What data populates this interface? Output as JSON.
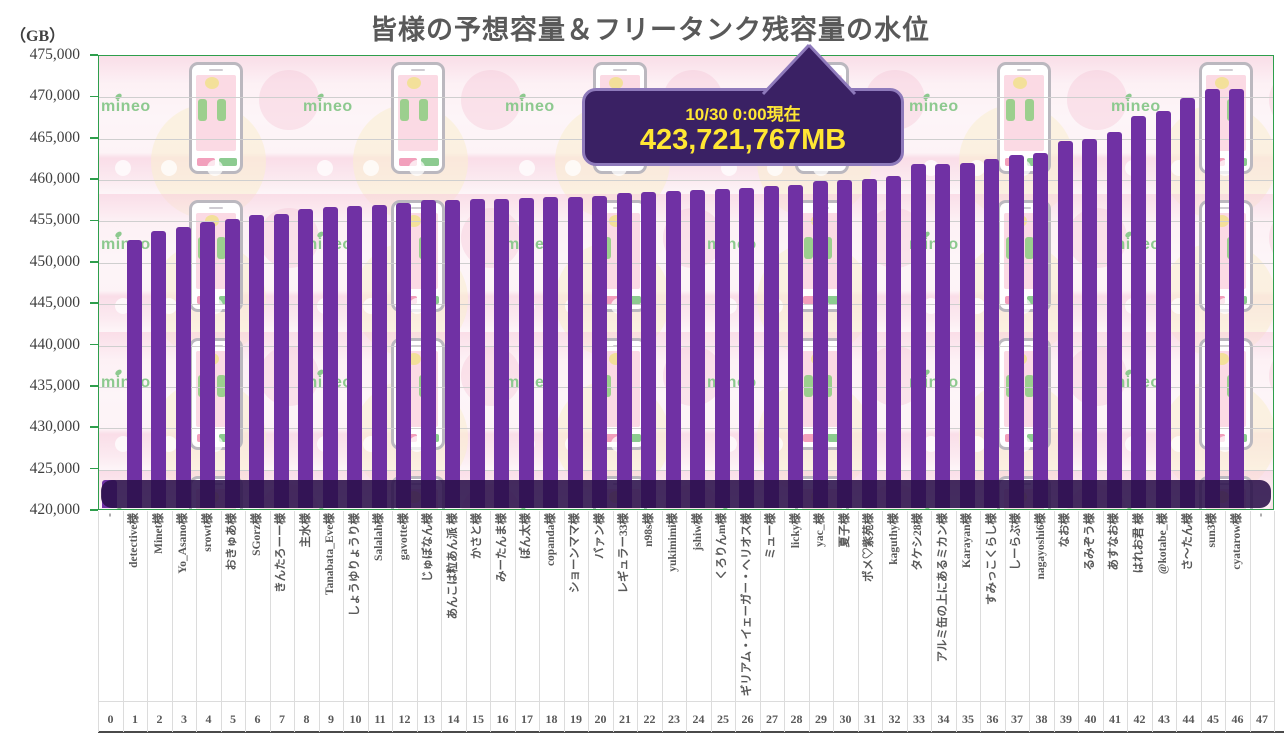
{
  "title": "皆様の予想容量＆フリータンク残容量の水位",
  "y_axis": {
    "unit": "（GB）",
    "tick_labels": [
      "475,000",
      "470,000",
      "465,000",
      "460,000",
      "455,000",
      "450,000",
      "445,000",
      "440,000",
      "435,000",
      "430,000",
      "425,000",
      "420,000"
    ]
  },
  "callout": {
    "line1": "10/30 0:00現在",
    "line2": "423,721,767MB"
  },
  "background": {
    "brand": "mineo"
  },
  "colors": {
    "bar": "#7031A4",
    "water_band": "#2A104A",
    "plot_border_green": "#2E9E4C",
    "callout_bg": "#3A2164",
    "callout_border": "#8E7ABB",
    "callout_text_yellow": "#FFE733",
    "brand_green": "#8DC98F",
    "title_gray": "#595959"
  },
  "chart_data": {
    "type": "bar",
    "title": "皆様の予想容量＆フリータンク残容量の水位",
    "xlabel": "",
    "ylabel": "（GB）",
    "ylim": [
      420000,
      475000
    ],
    "grid": true,
    "current_level_note": "10/30 0:00現在 423,721,767MB",
    "current_level_gb": 423722,
    "index_labels": [
      "0",
      "1",
      "2",
      "3",
      "4",
      "5",
      "6",
      "7",
      "8",
      "9",
      "10",
      "11",
      "12",
      "13",
      "14",
      "15",
      "16",
      "17",
      "18",
      "19",
      "20",
      "21",
      "22",
      "23",
      "24",
      "25",
      "26",
      "27",
      "28",
      "29",
      "30",
      "31",
      "32",
      "33",
      "34",
      "35",
      "36",
      "37",
      "38",
      "39",
      "40",
      "41",
      "42",
      "43",
      "44",
      "45",
      "46",
      "47"
    ],
    "categories": [
      "-",
      "detective様",
      "Minet様",
      "Yo_Asano様",
      "srowt様",
      "おきゅあ様",
      "SGorz様",
      "きんたろーー様",
      "主水様",
      "Tanabata_Eve様",
      "しょうゆりょうり様",
      "Salalah様",
      "gavotte様",
      "じゅぼなん様",
      "あんこは粒あん派 様",
      "かさと様",
      "みーたんま様",
      "ぽん太様",
      "copanda様",
      "ショーンママ様",
      "バァン様",
      "レギュラー33様",
      "n98s様",
      "yukimimi様",
      "jshiw様",
      "くろりんm様",
      "ギリアム・イェーガー・ヘリオス様",
      "ミュー様",
      "licky様",
      "yac_様",
      "夏子様",
      "ポメ♡紫苑様",
      "kaguthy様",
      "タケシ28様",
      "アルミ缶の上にあるミカン様",
      "Karayan様",
      "すみっこくらし様",
      "しーらぶ様",
      "nagayoshi6様",
      "なお様",
      "るみぞう様",
      "あすなお様",
      "はれお君 様",
      "@kotabe_様",
      "さ〜たん様",
      "sun3様",
      "cyatarow様",
      "-"
    ],
    "values": [
      423722,
      452700,
      453900,
      454300,
      454900,
      455300,
      455800,
      455900,
      456500,
      456800,
      456900,
      457000,
      457200,
      457600,
      457600,
      457700,
      457750,
      457800,
      457900,
      458000,
      458100,
      458500,
      458550,
      458700,
      458850,
      458950,
      459100,
      459250,
      459450,
      459850,
      460050,
      460150,
      460550,
      461900,
      462000,
      462050,
      462500,
      463000,
      463250,
      464700,
      465000,
      465800,
      467800,
      468400,
      469900,
      471050,
      471000,
      null
    ]
  }
}
